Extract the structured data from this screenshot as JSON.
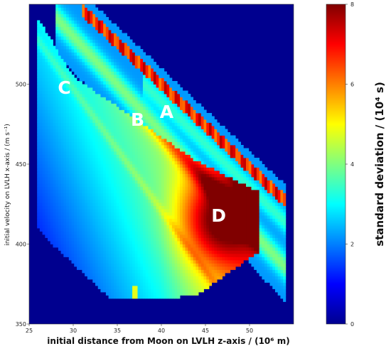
{
  "chart_data": {
    "type": "heatmap",
    "xlabel": "initial distance from Moon on LVLH z-axis / (10⁶ m)",
    "ylabel": "initial velocity on LVLH x-axis / (m s⁻¹)",
    "colorbar_label": "standard deviation / (10⁴ s)",
    "xlim": [
      25,
      55
    ],
    "ylim": [
      350,
      550
    ],
    "x_ticks": [
      "25",
      "30",
      "35",
      "40",
      "45",
      "50"
    ],
    "y_ticks": [
      "350",
      "400",
      "450",
      "500"
    ],
    "colorbar_range": [
      0,
      8
    ],
    "colorbar_ticks": [
      "0",
      "2",
      "4",
      "6",
      "8"
    ],
    "colormap": "jet",
    "background_color": "#00008f",
    "grid": false,
    "region_labels": [
      {
        "text": "A",
        "x": 40.6,
        "y": 479
      },
      {
        "text": "B",
        "x": 37.3,
        "y": 474
      },
      {
        "text": "C",
        "x": 29.0,
        "y": 494
      },
      {
        "text": "D",
        "x": 46.5,
        "y": 414
      }
    ]
  }
}
